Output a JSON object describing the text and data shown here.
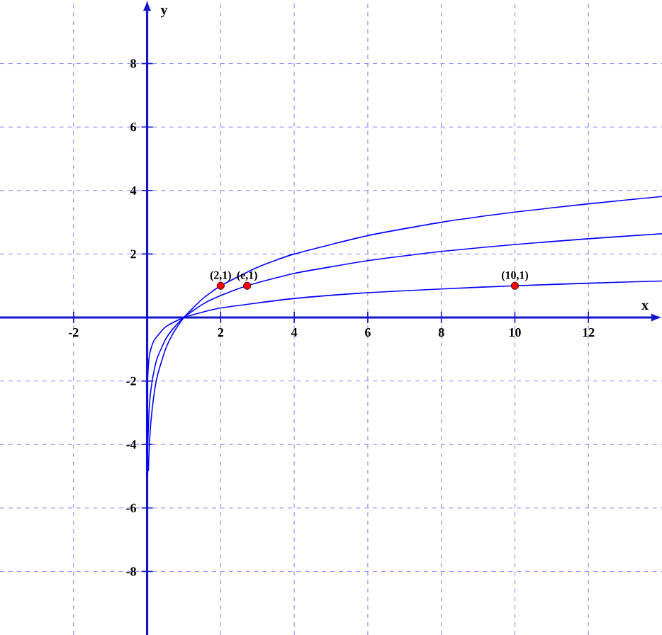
{
  "chart_data": {
    "type": "line",
    "xlabel": "x",
    "ylabel": "y",
    "xlim": [
      -4,
      14
    ],
    "ylim": [
      -10,
      10
    ],
    "xticks": [
      -2,
      2,
      4,
      6,
      8,
      10,
      12
    ],
    "yticks": [
      -8,
      -6,
      -4,
      -2,
      2,
      4,
      6,
      8
    ],
    "grid": true,
    "series": [
      {
        "color": "#0000ff",
        "marker": "none",
        "x": [
          0.035,
          0.05,
          0.1,
          0.2,
          0.3,
          0.5,
          0.7,
          1,
          1.5,
          2,
          3,
          4,
          6,
          8,
          10,
          12,
          14
        ],
        "values": [
          -4.84,
          -4.32,
          -3.32,
          -2.32,
          -1.74,
          -1,
          -0.51,
          0,
          0.58,
          1,
          1.58,
          2,
          2.58,
          3,
          3.32,
          3.58,
          3.81
        ]
      },
      {
        "color": "#0000ff",
        "marker": "none",
        "x": [
          0.007,
          0.02,
          0.05,
          0.1,
          0.2,
          0.3,
          0.5,
          0.7,
          1,
          1.5,
          2,
          2.72,
          4,
          6,
          8,
          10,
          12,
          14
        ],
        "values": [
          -4.96,
          -3.91,
          -3.0,
          -2.3,
          -1.61,
          -1.2,
          -0.69,
          -0.36,
          0,
          0.41,
          0.69,
          1.0,
          1.39,
          1.79,
          2.08,
          2.3,
          2.48,
          2.64
        ]
      },
      {
        "color": "#0000ff",
        "marker": "none",
        "x": [
          1e-05,
          0.0001,
          0.001,
          0.01,
          0.05,
          0.1,
          0.2,
          0.5,
          1,
          2,
          4,
          6,
          8,
          10,
          12,
          14
        ],
        "values": [
          -5,
          -4,
          -3,
          -2,
          -1.3,
          -1,
          -0.7,
          -0.3,
          0,
          0.3,
          0.6,
          0.78,
          0.9,
          1,
          1.08,
          1.15
        ]
      },
      {
        "type": "scatter",
        "color": "#ff0000",
        "marker": "circle",
        "x": [
          2,
          2.72,
          10
        ],
        "values": [
          1,
          1,
          1
        ]
      }
    ],
    "annotations": [
      {
        "text": "(2,1)",
        "x": 2,
        "y": 1
      },
      {
        "text": "(e,1)",
        "x": 2.72,
        "y": 1
      },
      {
        "text": "(10,1)",
        "x": 10,
        "y": 1
      }
    ]
  }
}
